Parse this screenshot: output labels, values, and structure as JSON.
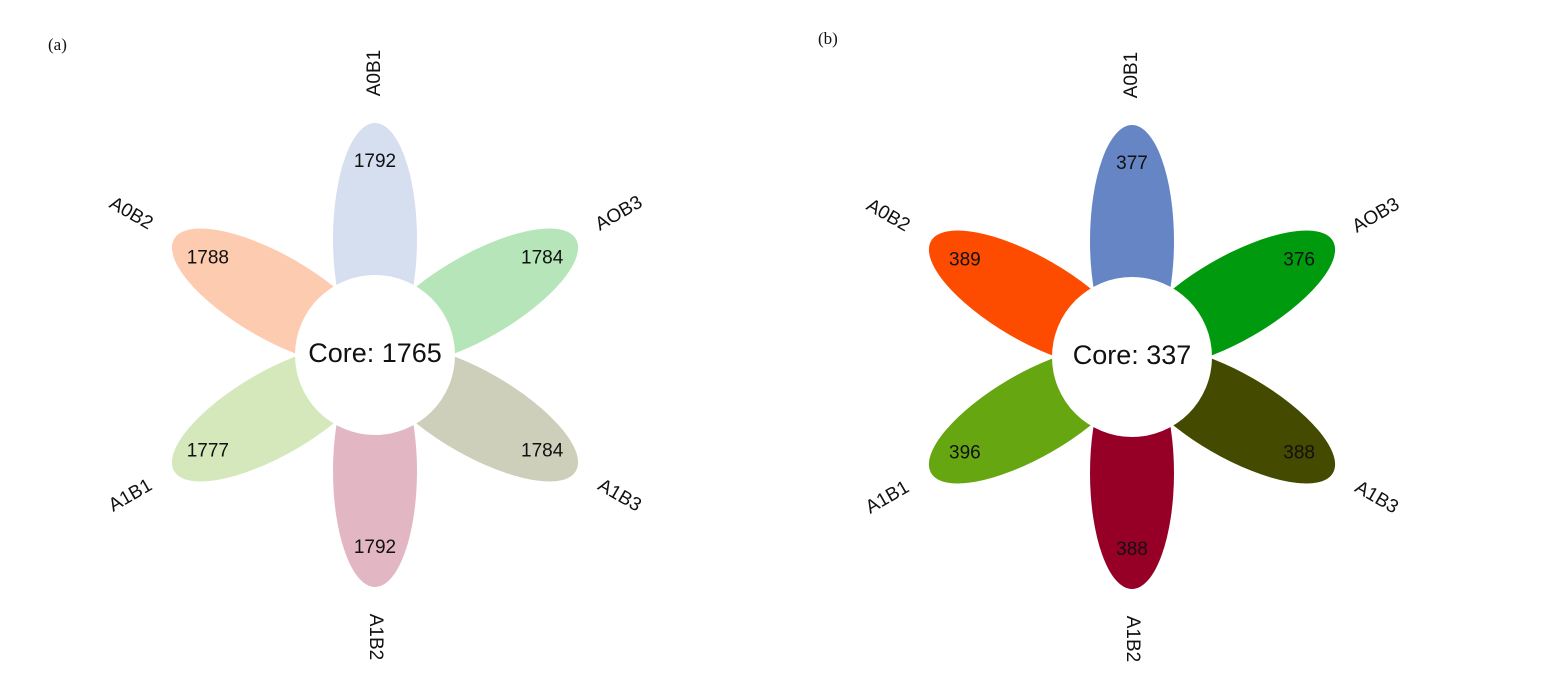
{
  "panels": [
    {
      "label": "(a)",
      "core": "Core: 1765",
      "petals": [
        {
          "name": "A0B1",
          "value": 1792,
          "color": "#d5dff0"
        },
        {
          "name": "AOB3",
          "value": 1784,
          "color": "#b5e5b8"
        },
        {
          "name": "A1B3",
          "value": 1784,
          "color": "#cdcfba"
        },
        {
          "name": "A1B2",
          "value": 1792,
          "color": "#e2b6c2"
        },
        {
          "name": "A1B1",
          "value": 1777,
          "color": "#d5e8bb"
        },
        {
          "name": "A0B2",
          "value": 1788,
          "color": "#fdcbb0"
        }
      ]
    },
    {
      "label": "(b)",
      "core": "Core: 337",
      "petals": [
        {
          "name": "A0B1",
          "value": 377,
          "color": "#6585c4"
        },
        {
          "name": "AOB3",
          "value": 376,
          "color": "#009a0e"
        },
        {
          "name": "A1B3",
          "value": 388,
          "color": "#444a00"
        },
        {
          "name": "A1B2",
          "value": 388,
          "color": "#960026"
        },
        {
          "name": "A1B1",
          "value": 396,
          "color": "#66a611"
        },
        {
          "name": "A0B2",
          "value": 389,
          "color": "#fd4c00"
        }
      ]
    }
  ]
}
